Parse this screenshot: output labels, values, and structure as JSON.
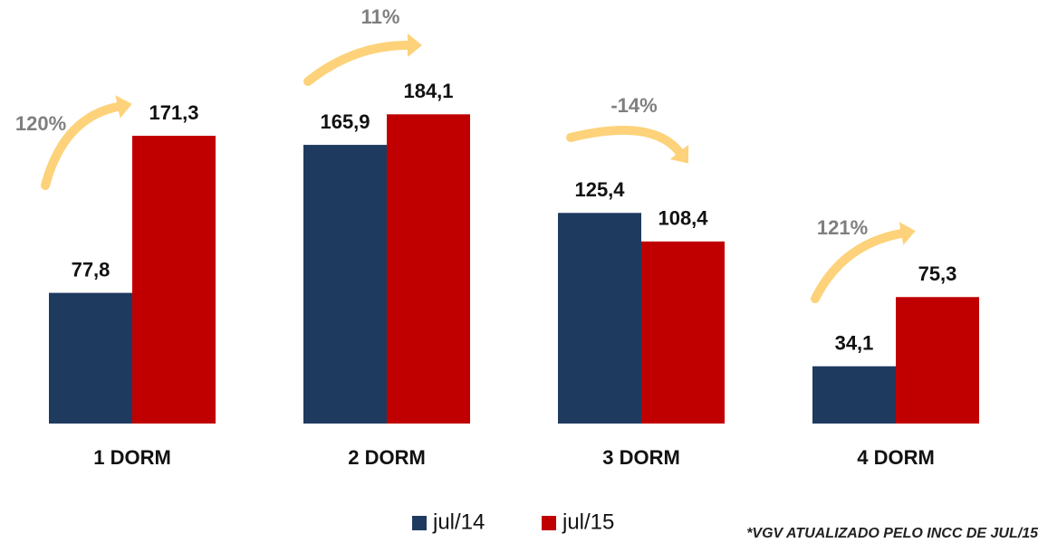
{
  "chart_data": {
    "type": "bar",
    "categories": [
      "1 DORM",
      "2 DORM",
      "3 DORM",
      "4 DORM"
    ],
    "series": [
      {
        "name": "jul/14",
        "color": "#1f3a5f",
        "values": [
          77.8,
          165.9,
          125.4,
          34.1
        ],
        "value_labels": [
          "77,8",
          "165,9",
          "125,4",
          "34,1"
        ]
      },
      {
        "name": "jul/15",
        "color": "#c00000",
        "values": [
          171.3,
          184.1,
          108.4,
          75.3
        ],
        "value_labels": [
          "171,3",
          "184,1",
          "108,4",
          "75,3"
        ]
      }
    ],
    "annotations": [
      "120%",
      "11%",
      "-14%",
      "121%"
    ],
    "footnote": "*VGV ATUALIZADO PELO INCC DE JUL/15",
    "legend": "bottom"
  }
}
